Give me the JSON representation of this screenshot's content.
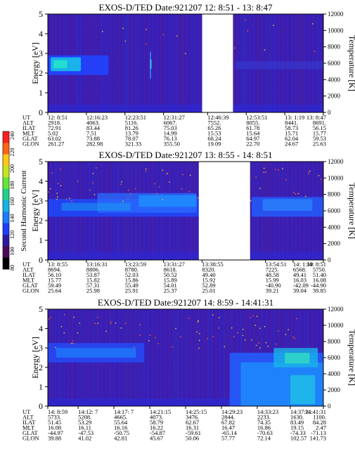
{
  "colorbar": {
    "label": "Second Harmonic Current",
    "ticks": [
      "80",
      "100",
      "120",
      "140",
      "160",
      "180",
      "200",
      "220",
      "240"
    ],
    "colors": [
      "#000000",
      "#4a0a5a",
      "#2a1aa0",
      "#1e3cff",
      "#1a7cff",
      "#14b4e6",
      "#1ed28c",
      "#64e632",
      "#c8e61e",
      "#ffc814",
      "#ff6414",
      "#ff1e1e"
    ]
  },
  "chart_data": [
    {
      "type": "heatmap",
      "title": "EXOS-D/TED   Date:921207  12: 8:51 - 13: 8:47",
      "ylabel": "Energy [eV]",
      "ylabel2": "Temperature [K]",
      "ylim": [
        0,
        5
      ],
      "ylim2": [
        0,
        12000
      ],
      "yticks": [
        "0",
        "1",
        "2",
        "3",
        "4",
        "5"
      ],
      "yticks2": [
        "0",
        "2000",
        "4000",
        "6000",
        "8000",
        "10000",
        "12000"
      ],
      "data_gaps": [
        [
          0.56,
          0.672
        ]
      ],
      "table": {
        "labels": [
          "UT",
          "ALT",
          "ILAT",
          "MLT",
          "GLAT",
          "GLON"
        ],
        "columns": [
          {
            "pos": 0.0,
            "values": [
              "12: 8:51",
              "2918.",
              "72.91",
              "5.02",
              "63.02",
              "261.27"
            ]
          },
          {
            "pos": 0.14,
            "values": [
              "12:16:23",
              "4063.",
              "83.44",
              "7.51",
              "73.88",
              "282.98"
            ]
          },
          {
            "pos": 0.28,
            "values": [
              "12:23:51",
              "5116.",
              "81.26",
              "13.79",
              "78.07",
              "321.33"
            ]
          },
          {
            "pos": 0.42,
            "values": [
              "12:31:27",
              "6067.",
              "75.03",
              "14.99",
              "76.13",
              "355.50"
            ]
          },
          {
            "pos": 0.58,
            "values": [
              "12:46:39",
              "7552.",
              "65.26",
              "15.53",
              "68.24",
              "19.09"
            ]
          },
          {
            "pos": 0.72,
            "values": [
              "12:53:51",
              "8055.",
              "61.78",
              "15.64",
              "64.97",
              "22.70"
            ]
          },
          {
            "pos": 0.86,
            "values": [
              "13: 1:19",
              "8441.",
              "58.73",
              "15.71",
              "62.04",
              "24.67"
            ]
          },
          {
            "pos": 1.0,
            "values": [
              "13: 8:47",
              "8691.",
              "56.15",
              "15.77",
              "59.53",
              "25.63"
            ]
          }
        ]
      }
    },
    {
      "type": "heatmap",
      "title": "EXOS-D/TED   Date:921207  13: 8:55 - 14: 8:51",
      "ylabel": "Energy [eV]",
      "ylabel2": "Temperature [K]",
      "ylim": [
        0,
        5
      ],
      "ylim2": [
        0,
        12000
      ],
      "yticks": [
        "0",
        "1",
        "2",
        "3",
        "4",
        "5"
      ],
      "yticks2": [
        "0",
        "2000",
        "4000",
        "6000",
        "8000",
        "10000",
        "12000"
      ],
      "data_gaps": [
        [
          0.548,
          0.734
        ]
      ],
      "table": {
        "labels": [
          "UT",
          "ALT",
          "ILAT",
          "MLT",
          "GLAT",
          "GLON"
        ],
        "columns": [
          {
            "pos": 0.0,
            "values": [
              "13: 8:55",
              "8694.",
              "56.10",
              "15.77",
              "59.49",
              "25.64"
            ]
          },
          {
            "pos": 0.14,
            "values": [
              "13:16:31",
              "8806.",
              "53.87",
              "15.82",
              "57.31",
              "25.98"
            ]
          },
          {
            "pos": 0.28,
            "values": [
              "13:23:59",
              "8780.",
              "52.03",
              "15.86",
              "55.49",
              "25.91"
            ]
          },
          {
            "pos": 0.42,
            "values": [
              "13:31:27",
              "8618.",
              "50.52",
              "15.89",
              "54.01",
              "25.37"
            ]
          },
          {
            "pos": 0.56,
            "values": [
              "13:38:55",
              "8320.",
              "49.40",
              "15.92",
              "52.89",
              "25.01"
            ]
          },
          {
            "pos": 0.79,
            "values": [
              "13:54:51",
              "7225.",
              "48.58",
              "15.99",
              "-40.90",
              "39.21"
            ]
          },
          {
            "pos": 0.89,
            "values": [
              "14: 1:39",
              "6568.",
              "49.41",
              "16.03",
              "-42.09",
              "39.04"
            ]
          },
          {
            "pos": 1.0,
            "values": [
              "14: 8:51",
              "5750.",
              "51.40",
              "16.08",
              "-44.90",
              "39.85"
            ]
          }
        ]
      }
    },
    {
      "type": "heatmap",
      "title": "EXOS-D/TED   Date:921207  14: 8:59 - 14:41:31",
      "ylabel": "Energy [eV]",
      "ylabel2": "Temperature [K]",
      "ylim": [
        0,
        5
      ],
      "ylim2": [
        0,
        12000
      ],
      "yticks": [
        "0",
        "1",
        "2",
        "3",
        "4",
        "5"
      ],
      "yticks2": [
        "0",
        "2000",
        "4000",
        "6000",
        "8000",
        "10000",
        "12000"
      ],
      "data_gaps": [],
      "table": {
        "labels": [
          "UT",
          "ALT",
          "ILAT",
          "MLT",
          "GLAT",
          "GLON"
        ],
        "columns": [
          {
            "pos": 0.0,
            "values": [
              "14: 8:59",
              "5733.",
              "51.45",
              "16.08",
              "-44.97",
              "39.88"
            ]
          },
          {
            "pos": 0.11,
            "values": [
              "14:12: 7",
              "5208.",
              "53.29",
              "16.11",
              "-47.53",
              "41.02"
            ]
          },
          {
            "pos": 0.24,
            "values": [
              "14:17: 7",
              "4665.",
              "55.64",
              "16.16",
              "-50.75",
              "42.81"
            ]
          },
          {
            "pos": 0.37,
            "values": [
              "14:21:15",
              "4073.",
              "58.79",
              "16.22",
              "-54.87",
              "45.67"
            ]
          },
          {
            "pos": 0.5,
            "values": [
              "14:25:15",
              "3476.",
              "62.67",
              "16.31",
              "-59.61",
              "50.06"
            ]
          },
          {
            "pos": 0.63,
            "values": [
              "14:29:23",
              "2844.",
              "67.82",
              "16.47",
              "-65.14",
              "57.77"
            ]
          },
          {
            "pos": 0.76,
            "values": [
              "14:33:23",
              "2233.",
              "74.35",
              "16.86",
              "-70.63",
              "72.14"
            ]
          },
          {
            "pos": 0.88,
            "values": [
              "14:37:31",
              "1630.",
              "83.49",
              "19.15",
              "-74.33",
              "102.57"
            ]
          },
          {
            "pos": 1.0,
            "values": [
              "14:41:31",
              "1100.",
              "84.28",
              "2.47",
              "-71.13",
              "141.73"
            ]
          }
        ]
      }
    }
  ]
}
